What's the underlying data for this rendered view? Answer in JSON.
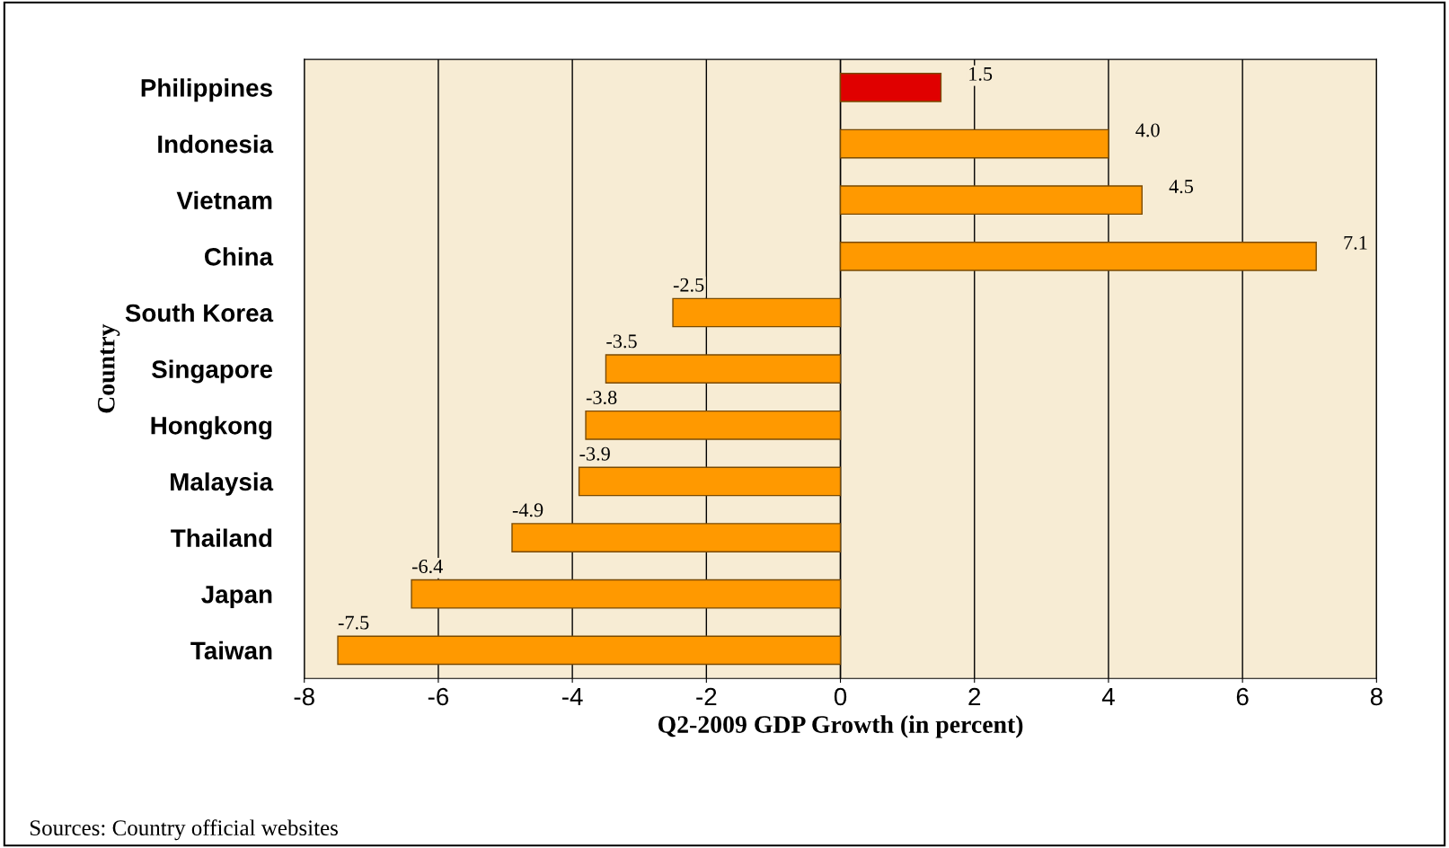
{
  "chart_data": {
    "type": "bar",
    "orientation": "horizontal",
    "xlabel": "Q2-2009 GDP Growth (in percent)",
    "ylabel": "Country",
    "categories": [
      "Philippines",
      "Indonesia",
      "Vietnam",
      "China",
      "South Korea",
      "Singapore",
      "Hongkong",
      "Malaysia",
      "Thailand",
      "Japan",
      "Taiwan"
    ],
    "values": [
      1.5,
      4.0,
      4.5,
      7.1,
      -2.5,
      -3.5,
      -3.8,
      -3.9,
      -4.9,
      -6.4,
      -7.5
    ],
    "value_labels": [
      "1.5",
      "4.0",
      "4.5",
      "7.1",
      "-2.5",
      "-3.5",
      "-3.8",
      "-3.9",
      "-4.9",
      "-6.4",
      "-7.5"
    ],
    "colors": [
      "#e00000",
      "#ff9900",
      "#ff9900",
      "#ff9900",
      "#ff9900",
      "#ff9900",
      "#ff9900",
      "#ff9900",
      "#ff9900",
      "#ff9900",
      "#ff9900"
    ],
    "xlim": [
      -8,
      8
    ],
    "xticks": [
      -8,
      -6,
      -4,
      -2,
      0,
      2,
      4,
      6,
      8
    ],
    "grid": "x",
    "annotations": [
      "Sources: Country official websites"
    ]
  }
}
